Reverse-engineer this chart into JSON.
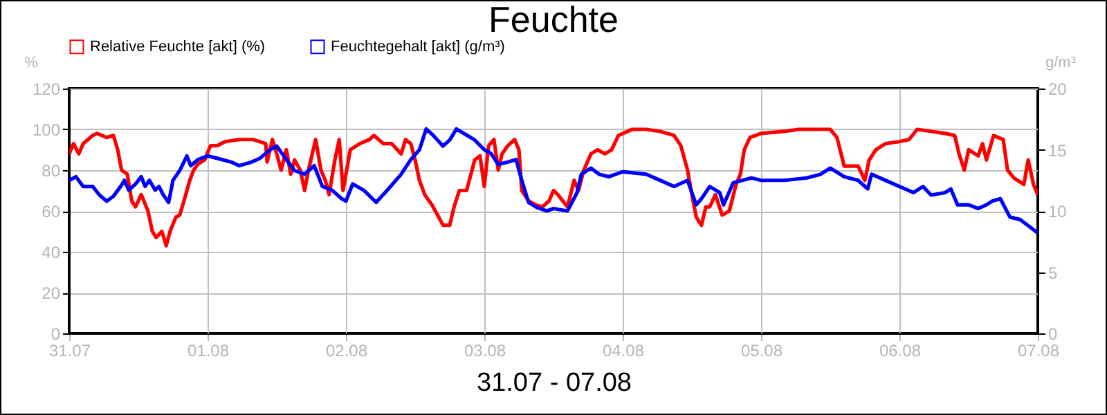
{
  "chart_data": {
    "type": "line",
    "title": "Feuchte",
    "xlabel": "31.07 - 07.08",
    "ylabel": "%",
    "y2label": "g/m³",
    "xlim": [
      "--07-31",
      "--08-07"
    ],
    "xticks": [
      {
        "value": "--07-31",
        "label": "31.07"
      },
      {
        "value": "--08-01",
        "label": "01.08"
      },
      {
        "value": "--08-02",
        "label": "02.08"
      },
      {
        "value": "--08-03",
        "label": "03.08"
      },
      {
        "value": "--08-04",
        "label": "04.08"
      },
      {
        "value": "--08-05",
        "label": "05.08"
      },
      {
        "value": "--08-06",
        "label": "06.08"
      },
      {
        "value": "--08-07",
        "label": "07.08"
      }
    ],
    "ylim": [
      0,
      120
    ],
    "yticks": [
      0,
      20,
      40,
      60,
      80,
      100,
      120
    ],
    "y2lim": [
      0,
      20
    ],
    "y2ticks": [
      0,
      5,
      10,
      15,
      20
    ],
    "grid": true,
    "legend": "top left",
    "line_style": "solid",
    "series": [
      {
        "name": "Relative Feuchte [akt] (%)",
        "color": "#ff0000",
        "x": [
          "--07-31T00:00",
          "--07-31T00:45",
          "--07-31T01:40",
          "--07-31T02:25",
          "--07-31T04:05",
          "--07-31T04:50",
          "--07-31T06:30",
          "--07-31T07:40",
          "--07-31T08:25",
          "--07-31T09:05",
          "--07-31T10:05",
          "--07-31T10:50",
          "--07-31T11:30",
          "--07-31T12:30",
          "--07-31T13:40",
          "--07-31T14:25",
          "--07-31T15:05",
          "--07-31T16:05",
          "--07-31T16:50",
          "--07-31T17:30",
          "--07-31T18:30",
          "--07-31T19:10",
          "--07-31T19:55",
          "--07-31T20:55",
          "--07-31T21:35",
          "--07-31T22:20",
          "--07-31T23:30",
          "--08-01T00:30",
          "--08-01T01:40",
          "--08-01T03:05",
          "--08-01T05:30",
          "--08-01T07:55",
          "--08-01T10:05",
          "--08-01T10:20",
          "--08-01T11:15",
          "--08-01T12:00",
          "--08-01T12:45",
          "--08-01T13:40",
          "--08-01T14:25",
          "--08-01T15:05",
          "--08-01T16:05",
          "--08-01T16:50",
          "--08-01T17:30",
          "--08-01T18:45",
          "--08-01T19:40",
          "--08-01T20:25",
          "--08-01T21:05",
          "--08-01T22:05",
          "--08-01T22:50",
          "--08-01T23:30",
          "--08-02T00:45",
          "--08-02T02:25",
          "--08-02T04:05",
          "--08-02T04:50",
          "--08-02T06:30",
          "--08-02T07:55",
          "--08-02T09:35",
          "--08-02T10:20",
          "--08-02T11:15",
          "--08-02T12:00",
          "--08-02T12:45",
          "--08-02T13:40",
          "--08-02T14:55",
          "--08-02T16:05",
          "--08-02T16:50",
          "--08-02T18:00",
          "--08-02T18:45",
          "--08-02T19:40",
          "--08-02T20:55",
          "--08-02T21:35",
          "--08-02T22:20",
          "--08-02T23:15",
          "--08-03T00:00",
          "--08-03T00:45",
          "--08-03T01:40",
          "--08-03T02:25",
          "--08-03T03:05",
          "--08-03T04:05",
          "--08-03T05:15",
          "--08-03T06:00",
          "--08-03T06:30",
          "--08-03T07:40",
          "--08-03T08:55",
          "--08-03T10:05",
          "--08-03T11:15",
          "--08-03T12:00",
          "--08-03T12:45",
          "--08-03T14:25",
          "--08-03T15:35",
          "--08-03T16:20",
          "--08-03T17:15",
          "--08-03T18:30",
          "--08-03T19:40",
          "--08-03T20:55",
          "--08-03T22:05",
          "--08-03T23:15",
          "--08-04T01:40",
          "--08-04T04:05",
          "--08-04T06:30",
          "--08-04T08:55",
          "--08-04T10:05",
          "--08-04T11:15",
          "--08-04T12:00",
          "--08-04T12:45",
          "--08-04T13:40",
          "--08-04T14:25",
          "--08-04T15:05",
          "--08-04T16:05",
          "--08-04T17:15",
          "--08-04T18:30",
          "--08-04T19:40",
          "--08-04T20:25",
          "--08-04T21:05",
          "--08-04T22:05",
          "--08-05T00:00",
          "--08-05T04:05",
          "--08-05T06:30",
          "--08-05T12:00",
          "--08-05T13:10",
          "--08-05T14:25",
          "--08-05T15:35",
          "--08-05T16:50",
          "--08-05T18:00",
          "--08-05T18:45",
          "--08-05T19:55",
          "--08-05T21:35",
          "--08-06T00:00",
          "--08-06T01:40",
          "--08-06T03:05",
          "--08-06T05:30",
          "--08-06T07:55",
          "--08-06T09:35",
          "--08-06T10:20",
          "--08-06T11:15",
          "--08-06T12:00",
          "--08-06T13:40",
          "--08-06T14:25",
          "--08-06T15:05",
          "--08-06T16:20",
          "--08-06T18:00",
          "--08-06T18:45",
          "--08-06T19:55",
          "--08-06T21:35",
          "--08-06T22:20",
          "--08-06T23:15",
          "--08-07T00:00"
        ],
        "values": [
          88,
          93,
          88,
          93,
          97,
          98,
          96,
          97,
          90,
          80,
          78,
          65,
          62,
          68,
          60,
          50,
          47,
          50,
          43,
          50,
          57,
          58,
          65,
          75,
          80,
          83,
          85,
          92,
          92,
          94,
          95,
          95,
          93,
          84,
          95,
          88,
          80,
          90,
          78,
          85,
          80,
          70,
          80,
          95,
          80,
          75,
          68,
          85,
          95,
          70,
          90,
          93,
          95,
          97,
          93,
          93,
          88,
          95,
          93,
          85,
          75,
          68,
          63,
          57,
          53,
          53,
          62,
          70,
          70,
          77,
          85,
          87,
          72,
          92,
          95,
          80,
          88,
          92,
          95,
          90,
          70,
          65,
          63,
          62,
          65,
          70,
          68,
          62,
          75,
          70,
          80,
          88,
          90,
          88,
          90,
          97,
          100,
          100,
          99,
          97,
          92,
          80,
          68,
          57,
          53,
          62,
          62,
          68,
          58,
          60,
          73,
          78,
          90,
          96,
          98,
          99,
          100,
          100,
          96,
          82,
          82,
          82,
          75,
          85,
          90,
          93,
          94,
          95,
          100,
          99,
          98,
          97,
          88,
          80,
          90,
          87,
          93,
          85,
          97,
          95,
          80,
          76,
          73,
          85,
          73,
          68
        ]
      },
      {
        "name": "Feuchtegehalt [akt] (g/m³)",
        "color": "#0000ff",
        "axis": "y2",
        "x": [
          "--07-31T00:00",
          "--07-31T01:10",
          "--07-31T02:25",
          "--07-31T04:05",
          "--07-31T05:15",
          "--07-31T06:30",
          "--07-31T07:40",
          "--07-31T08:55",
          "--07-31T09:35",
          "--07-31T10:20",
          "--07-31T11:30",
          "--07-31T12:30",
          "--07-31T13:10",
          "--07-31T13:55",
          "--07-31T14:55",
          "--07-31T15:35",
          "--07-31T16:20",
          "--07-31T17:15",
          "--07-31T18:00",
          "--07-31T19:10",
          "--07-31T20:25",
          "--07-31T21:05",
          "--07-31T22:20",
          "--08-01T00:00",
          "--08-01T01:40",
          "--08-01T04:05",
          "--08-01T05:30",
          "--08-01T07:40",
          "--08-01T09:05",
          "--08-01T10:50",
          "--08-01T12:00",
          "--08-01T13:40",
          "--08-01T15:05",
          "--08-01T16:50",
          "--08-01T18:30",
          "--08-01T19:55",
          "--08-01T21:35",
          "--08-01T23:15",
          "--08-02T00:00",
          "--08-02T01:10",
          "--08-02T03:05",
          "--08-02T05:15",
          "--08-02T07:10",
          "--08-02T09:35",
          "--08-02T11:15",
          "--08-02T12:45",
          "--08-02T13:55",
          "--08-02T15:05",
          "--08-02T16:50",
          "--08-02T18:00",
          "--08-02T19:10",
          "--08-02T20:55",
          "--08-02T22:20",
          "--08-03T00:00",
          "--08-03T01:10",
          "--08-03T02:25",
          "--08-03T04:05",
          "--08-03T05:30",
          "--08-03T06:30",
          "--08-03T07:40",
          "--08-03T09:05",
          "--08-03T10:50",
          "--08-03T12:00",
          "--08-03T14:25",
          "--08-03T16:05",
          "--08-03T16:50",
          "--08-03T18:30",
          "--08-03T19:55",
          "--08-03T21:35",
          "--08-04T00:00",
          "--08-04T04:05",
          "--08-04T06:30",
          "--08-04T08:55",
          "--08-04T11:15",
          "--08-04T12:45",
          "--08-04T13:40",
          "--08-04T15:05",
          "--08-04T16:50",
          "--08-04T17:30",
          "--08-04T19:10",
          "--08-04T22:20",
          "--08-05T00:00",
          "--08-05T04:05",
          "--08-05T07:55",
          "--08-05T10:20",
          "--08-05T12:00",
          "--08-05T14:25",
          "--08-05T16:50",
          "--08-05T18:30",
          "--08-05T19:10",
          "--08-05T21:35",
          "--08-06T00:00",
          "--08-06T02:25",
          "--08-06T04:05",
          "--08-06T05:30",
          "--08-06T07:55",
          "--08-06T08:55",
          "--08-06T10:05",
          "--08-06T12:00",
          "--08-06T13:40",
          "--08-06T15:05",
          "--08-06T16:05",
          "--08-06T17:30",
          "--08-06T19:10",
          "--08-06T20:55",
          "--08-06T22:20",
          "--08-07T00:00"
        ],
        "values": [
          12.5,
          12.8,
          12,
          12,
          11.3,
          10.8,
          11.2,
          12,
          12.5,
          11.7,
          12.2,
          12.8,
          12,
          12.5,
          11.7,
          12,
          11.3,
          10.7,
          12.5,
          13.3,
          14.5,
          13.7,
          14.2,
          14.5,
          14.3,
          14,
          13.7,
          14,
          14.3,
          15,
          15.3,
          14.2,
          13.3,
          13,
          13.7,
          12,
          11.7,
          11,
          10.8,
          12.2,
          11.7,
          10.7,
          11.7,
          13,
          14.2,
          15,
          16.7,
          16.2,
          15.3,
          15.8,
          16.7,
          16.2,
          15.8,
          15,
          14.7,
          13.8,
          14,
          14.2,
          12.5,
          10.7,
          10.3,
          10,
          10.2,
          10,
          11.5,
          13,
          13.5,
          13,
          12.8,
          13.2,
          13,
          12.5,
          12,
          12.5,
          10.5,
          11,
          12,
          11.5,
          10.5,
          12.3,
          12.7,
          12.5,
          12.5,
          12.7,
          13,
          13.5,
          12.8,
          12.5,
          11.8,
          13,
          12.5,
          12,
          11.5,
          12,
          11.3,
          11.5,
          11.8,
          10.5,
          10.5,
          10.2,
          10.5,
          10.8,
          11,
          9.5,
          9.3,
          8.8,
          8.2
        ]
      }
    ]
  }
}
